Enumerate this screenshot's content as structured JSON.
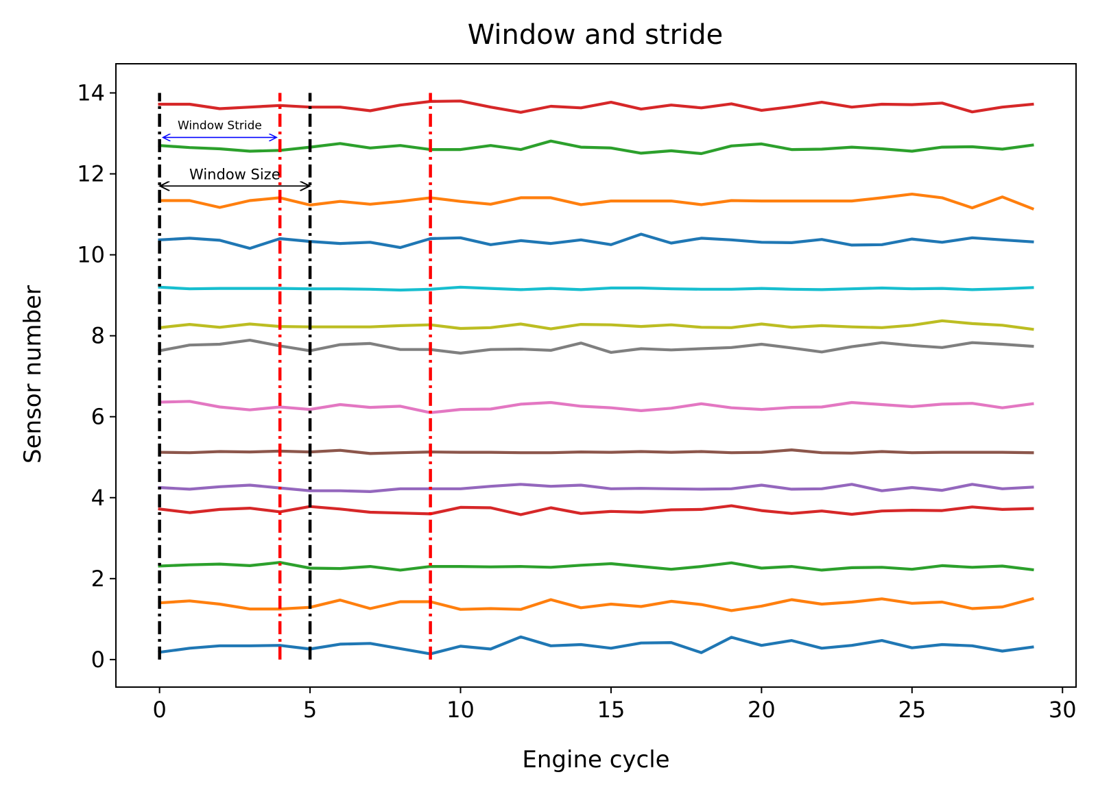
{
  "chart_data": {
    "type": "line",
    "title": "Window and stride",
    "xlabel": "Engine cycle",
    "ylabel": "Sensor number",
    "xlim": [
      -1.45,
      30.45
    ],
    "ylim": [
      -0.68,
      14.72
    ],
    "x_ticks": [
      0,
      5,
      10,
      15,
      20,
      25,
      30
    ],
    "y_ticks": [
      0,
      2,
      4,
      6,
      8,
      10,
      12,
      14
    ],
    "grid": false,
    "x": [
      0,
      1,
      2,
      3,
      4,
      5,
      6,
      7,
      8,
      9,
      10,
      11,
      12,
      13,
      14,
      15,
      16,
      17,
      18,
      19,
      20,
      21,
      22,
      23,
      24,
      25,
      26,
      27,
      28,
      29
    ],
    "series": [
      {
        "color": "#1f77b4",
        "values": [
          0.18,
          0.28,
          0.34,
          0.34,
          0.35,
          0.26,
          0.38,
          0.4,
          0.27,
          0.14,
          0.33,
          0.26,
          0.56,
          0.34,
          0.37,
          0.28,
          0.41,
          0.42,
          0.17,
          0.55,
          0.35,
          0.47,
          0.28,
          0.35,
          0.47,
          0.29,
          0.37,
          0.34,
          0.21,
          0.31
        ]
      },
      {
        "color": "#ff7f0e",
        "values": [
          1.4,
          1.45,
          1.37,
          1.25,
          1.25,
          1.29,
          1.47,
          1.26,
          1.43,
          1.43,
          1.24,
          1.26,
          1.24,
          1.48,
          1.28,
          1.37,
          1.31,
          1.44,
          1.36,
          1.21,
          1.32,
          1.48,
          1.37,
          1.42,
          1.5,
          1.39,
          1.42,
          1.26,
          1.3,
          1.5
        ]
      },
      {
        "color": "#2ca02c",
        "values": [
          2.31,
          2.34,
          2.36,
          2.32,
          2.4,
          2.26,
          2.25,
          2.3,
          2.21,
          2.3,
          2.3,
          2.29,
          2.3,
          2.28,
          2.33,
          2.37,
          2.3,
          2.23,
          2.3,
          2.39,
          2.26,
          2.3,
          2.21,
          2.27,
          2.28,
          2.23,
          2.32,
          2.28,
          2.31,
          2.22
        ]
      },
      {
        "color": "#d62728",
        "values": [
          3.72,
          3.63,
          3.71,
          3.74,
          3.65,
          3.78,
          3.72,
          3.64,
          3.62,
          3.6,
          3.76,
          3.75,
          3.58,
          3.75,
          3.61,
          3.66,
          3.64,
          3.7,
          3.71,
          3.8,
          3.68,
          3.61,
          3.67,
          3.59,
          3.67,
          3.69,
          3.68,
          3.77,
          3.71,
          3.73
        ]
      },
      {
        "color": "#9467bd",
        "values": [
          4.25,
          4.21,
          4.27,
          4.31,
          4.24,
          4.17,
          4.17,
          4.15,
          4.22,
          4.22,
          4.22,
          4.28,
          4.33,
          4.28,
          4.31,
          4.22,
          4.23,
          4.22,
          4.21,
          4.22,
          4.31,
          4.21,
          4.22,
          4.33,
          4.17,
          4.25,
          4.18,
          4.33,
          4.22,
          4.26
        ]
      },
      {
        "color": "#8c564b",
        "values": [
          5.12,
          5.11,
          5.14,
          5.13,
          5.15,
          5.13,
          5.17,
          5.09,
          5.11,
          5.13,
          5.12,
          5.12,
          5.11,
          5.11,
          5.13,
          5.12,
          5.14,
          5.12,
          5.14,
          5.11,
          5.12,
          5.18,
          5.11,
          5.1,
          5.14,
          5.11,
          5.12,
          5.12,
          5.12,
          5.11
        ]
      },
      {
        "color": "#e377c2",
        "values": [
          6.36,
          6.38,
          6.24,
          6.17,
          6.24,
          6.18,
          6.3,
          6.23,
          6.26,
          6.1,
          6.18,
          6.19,
          6.31,
          6.35,
          6.26,
          6.22,
          6.15,
          6.21,
          6.32,
          6.22,
          6.18,
          6.23,
          6.24,
          6.35,
          6.3,
          6.25,
          6.31,
          6.33,
          6.22,
          6.32
        ]
      },
      {
        "color": "#7f7f7f",
        "values": [
          7.63,
          7.77,
          7.79,
          7.89,
          7.75,
          7.63,
          7.78,
          7.81,
          7.66,
          7.66,
          7.57,
          7.66,
          7.67,
          7.64,
          7.82,
          7.59,
          7.68,
          7.65,
          7.68,
          7.71,
          7.79,
          7.7,
          7.6,
          7.73,
          7.83,
          7.76,
          7.71,
          7.83,
          7.79,
          7.74
        ]
      },
      {
        "color": "#bcbd22",
        "values": [
          8.2,
          8.28,
          8.21,
          8.29,
          8.23,
          8.22,
          8.22,
          8.22,
          8.25,
          8.27,
          8.18,
          8.2,
          8.29,
          8.17,
          8.28,
          8.27,
          8.23,
          8.27,
          8.21,
          8.2,
          8.29,
          8.21,
          8.25,
          8.22,
          8.2,
          8.26,
          8.37,
          8.3,
          8.26,
          8.16
        ]
      },
      {
        "color": "#17becf",
        "values": [
          9.2,
          9.16,
          9.17,
          9.17,
          9.17,
          9.16,
          9.16,
          9.15,
          9.13,
          9.15,
          9.2,
          9.17,
          9.14,
          9.17,
          9.14,
          9.18,
          9.18,
          9.16,
          9.15,
          9.15,
          9.17,
          9.15,
          9.14,
          9.16,
          9.18,
          9.16,
          9.17,
          9.14,
          9.16,
          9.19
        ]
      },
      {
        "color": "#1f77b4",
        "values": [
          10.37,
          10.41,
          10.36,
          10.16,
          10.4,
          10.33,
          10.28,
          10.31,
          10.18,
          10.4,
          10.42,
          10.25,
          10.35,
          10.28,
          10.37,
          10.25,
          10.51,
          10.29,
          10.41,
          10.37,
          10.31,
          10.3,
          10.38,
          10.24,
          10.25,
          10.39,
          10.31,
          10.42,
          10.37,
          10.32
        ]
      },
      {
        "color": "#ff7f0e",
        "values": [
          11.34,
          11.34,
          11.17,
          11.34,
          11.41,
          11.23,
          11.32,
          11.25,
          11.32,
          11.41,
          11.32,
          11.25,
          11.41,
          11.41,
          11.24,
          11.33,
          11.33,
          11.33,
          11.24,
          11.34,
          11.33,
          11.33,
          11.33,
          11.33,
          11.41,
          11.5,
          11.41,
          11.16,
          11.43,
          11.14
        ]
      },
      {
        "color": "#2ca02c",
        "values": [
          12.7,
          12.65,
          12.62,
          12.56,
          12.58,
          12.66,
          12.75,
          12.64,
          12.7,
          12.6,
          12.6,
          12.7,
          12.6,
          12.81,
          12.66,
          12.64,
          12.51,
          12.57,
          12.5,
          12.69,
          12.74,
          12.6,
          12.61,
          12.66,
          12.62,
          12.56,
          12.66,
          12.67,
          12.61,
          12.71
        ]
      },
      {
        "color": "#d62728",
        "values": [
          13.72,
          13.72,
          13.61,
          13.65,
          13.69,
          13.65,
          13.65,
          13.56,
          13.7,
          13.79,
          13.8,
          13.65,
          13.52,
          13.67,
          13.63,
          13.77,
          13.6,
          13.7,
          13.63,
          13.73,
          13.57,
          13.66,
          13.77,
          13.65,
          13.72,
          13.71,
          13.75,
          13.53,
          13.65,
          13.72
        ]
      }
    ],
    "vertical_lines": [
      {
        "x": 0,
        "color": "#000000",
        "style": "dashdot",
        "y_from": 0,
        "y_to": 14
      },
      {
        "x": 5,
        "color": "#000000",
        "style": "dashdot",
        "y_from": 0,
        "y_to": 14
      },
      {
        "x": 4,
        "color": "#ff0000",
        "style": "dashdot",
        "y_from": 0,
        "y_to": 14
      },
      {
        "x": 9,
        "color": "#ff0000",
        "style": "dashdot",
        "y_from": 0,
        "y_to": 14
      }
    ],
    "annotations": [
      {
        "text": "Window Stride",
        "x_from": 0,
        "x_to": 4,
        "y": 12.9,
        "color": "#0000ff"
      },
      {
        "text": "Window Size",
        "x_from": 0,
        "x_to": 5,
        "y": 11.7,
        "color": "#000000"
      }
    ]
  }
}
